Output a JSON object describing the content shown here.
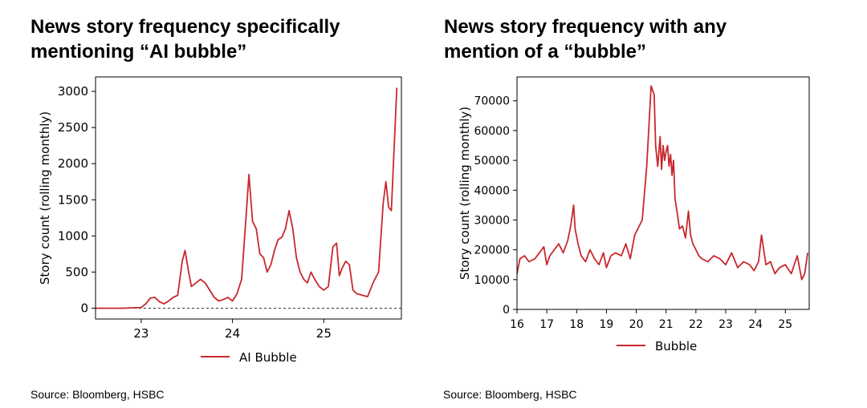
{
  "panels": [
    {
      "title_line1": "News story frequency specifically",
      "title_line2": "mentioning “AI bubble”",
      "source": "Source: Bloomberg, HSBC"
    },
    {
      "title_line1": "News story frequency with any",
      "title_line2": "mention of a “bubble”",
      "source": "Source: Bloomberg, HSBC"
    }
  ],
  "chart_data": [
    {
      "type": "line",
      "title": "",
      "xlabel": "",
      "ylabel": "Story count (rolling monthly)",
      "xlim": [
        22.5,
        25.85
      ],
      "ylim": [
        -150,
        3200
      ],
      "xticks": [
        23,
        24,
        25
      ],
      "xtick_labels": [
        "23",
        "24",
        "25"
      ],
      "yticks": [
        0,
        500,
        1000,
        1500,
        2000,
        2500,
        3000
      ],
      "ytick_labels": [
        "0",
        "500",
        "1000",
        "1500",
        "2000",
        "2500",
        "3000"
      ],
      "zero_line": "dashed",
      "legend": "bottom-center",
      "color": "#c8282c",
      "series": [
        {
          "name": "AI Bubble",
          "x": [
            22.5,
            22.8,
            23.0,
            23.05,
            23.1,
            23.15,
            23.2,
            23.25,
            23.3,
            23.35,
            23.4,
            23.45,
            23.48,
            23.52,
            23.55,
            23.6,
            23.65,
            23.7,
            23.75,
            23.8,
            23.85,
            23.9,
            23.95,
            24.0,
            24.05,
            24.1,
            24.15,
            24.18,
            24.22,
            24.26,
            24.3,
            24.34,
            24.38,
            24.42,
            24.46,
            24.5,
            24.54,
            24.58,
            24.62,
            24.66,
            24.7,
            24.74,
            24.78,
            24.82,
            24.86,
            24.9,
            24.95,
            25.0,
            25.05,
            25.1,
            25.14,
            25.17,
            25.2,
            25.24,
            25.28,
            25.32,
            25.36,
            25.42,
            25.48,
            25.54,
            25.6,
            25.65,
            25.68,
            25.71,
            25.74,
            25.77,
            25.8
          ],
          "y": [
            0,
            0,
            10,
            60,
            140,
            150,
            90,
            60,
            100,
            150,
            180,
            650,
            800,
            500,
            300,
            350,
            400,
            350,
            250,
            150,
            100,
            120,
            150,
            100,
            200,
            400,
            1300,
            1850,
            1200,
            1100,
            750,
            700,
            500,
            600,
            800,
            950,
            980,
            1100,
            1350,
            1100,
            700,
            500,
            400,
            350,
            500,
            400,
            300,
            250,
            300,
            850,
            900,
            450,
            550,
            650,
            600,
            250,
            200,
            180,
            160,
            350,
            500,
            1450,
            1750,
            1400,
            1350,
            2200,
            3050
          ]
        }
      ]
    },
    {
      "type": "line",
      "title": "",
      "xlabel": "",
      "ylabel": "Story count (rolling monthly)",
      "xlim": [
        16,
        25.8
      ],
      "ylim": [
        0,
        78000
      ],
      "xticks": [
        16,
        17,
        18,
        19,
        20,
        21,
        22,
        23,
        24,
        25
      ],
      "xtick_labels": [
        "16",
        "17",
        "18",
        "19",
        "20",
        "21",
        "22",
        "23",
        "24",
        "25"
      ],
      "yticks": [
        0,
        10000,
        20000,
        30000,
        40000,
        50000,
        60000,
        70000
      ],
      "ytick_labels": [
        "0",
        "10000",
        "20000",
        "30000",
        "40000",
        "50000",
        "60000",
        "70000"
      ],
      "legend": "bottom-center",
      "color": "#c8282c",
      "series": [
        {
          "name": "Bubble",
          "x": [
            16.0,
            16.1,
            16.25,
            16.4,
            16.6,
            16.75,
            16.9,
            17.0,
            17.1,
            17.25,
            17.4,
            17.55,
            17.7,
            17.8,
            17.9,
            17.95,
            18.05,
            18.15,
            18.3,
            18.45,
            18.6,
            18.75,
            18.9,
            19.0,
            19.15,
            19.3,
            19.5,
            19.65,
            19.8,
            19.95,
            20.05,
            20.2,
            20.35,
            20.5,
            20.6,
            20.65,
            20.72,
            20.8,
            20.85,
            20.9,
            20.95,
            21.0,
            21.05,
            21.1,
            21.15,
            21.2,
            21.25,
            21.3,
            21.38,
            21.45,
            21.55,
            21.65,
            21.75,
            21.82,
            21.9,
            22.0,
            22.1,
            22.2,
            22.4,
            22.6,
            22.8,
            23.0,
            23.2,
            23.4,
            23.6,
            23.8,
            23.95,
            24.1,
            24.2,
            24.35,
            24.5,
            24.65,
            24.8,
            25.0,
            25.2,
            25.4,
            25.55,
            25.65,
            25.75
          ],
          "y": [
            12000,
            17000,
            18000,
            16000,
            17000,
            19000,
            21000,
            15000,
            18000,
            20000,
            22000,
            19000,
            23000,
            28000,
            35000,
            27000,
            22000,
            18000,
            16000,
            20000,
            17000,
            15000,
            19000,
            14000,
            18000,
            19000,
            18000,
            22000,
            17000,
            25000,
            27000,
            30000,
            48000,
            75000,
            72000,
            55000,
            48000,
            58000,
            47000,
            55000,
            50000,
            53000,
            55000,
            48000,
            52000,
            45000,
            50000,
            37000,
            32000,
            27000,
            28000,
            24000,
            33000,
            25000,
            22000,
            20000,
            18000,
            17000,
            16000,
            18000,
            17000,
            15000,
            19000,
            14000,
            16000,
            15000,
            13000,
            16000,
            25000,
            15000,
            16000,
            12000,
            14000,
            15000,
            12000,
            18000,
            10000,
            12000,
            19000
          ]
        }
      ]
    }
  ]
}
